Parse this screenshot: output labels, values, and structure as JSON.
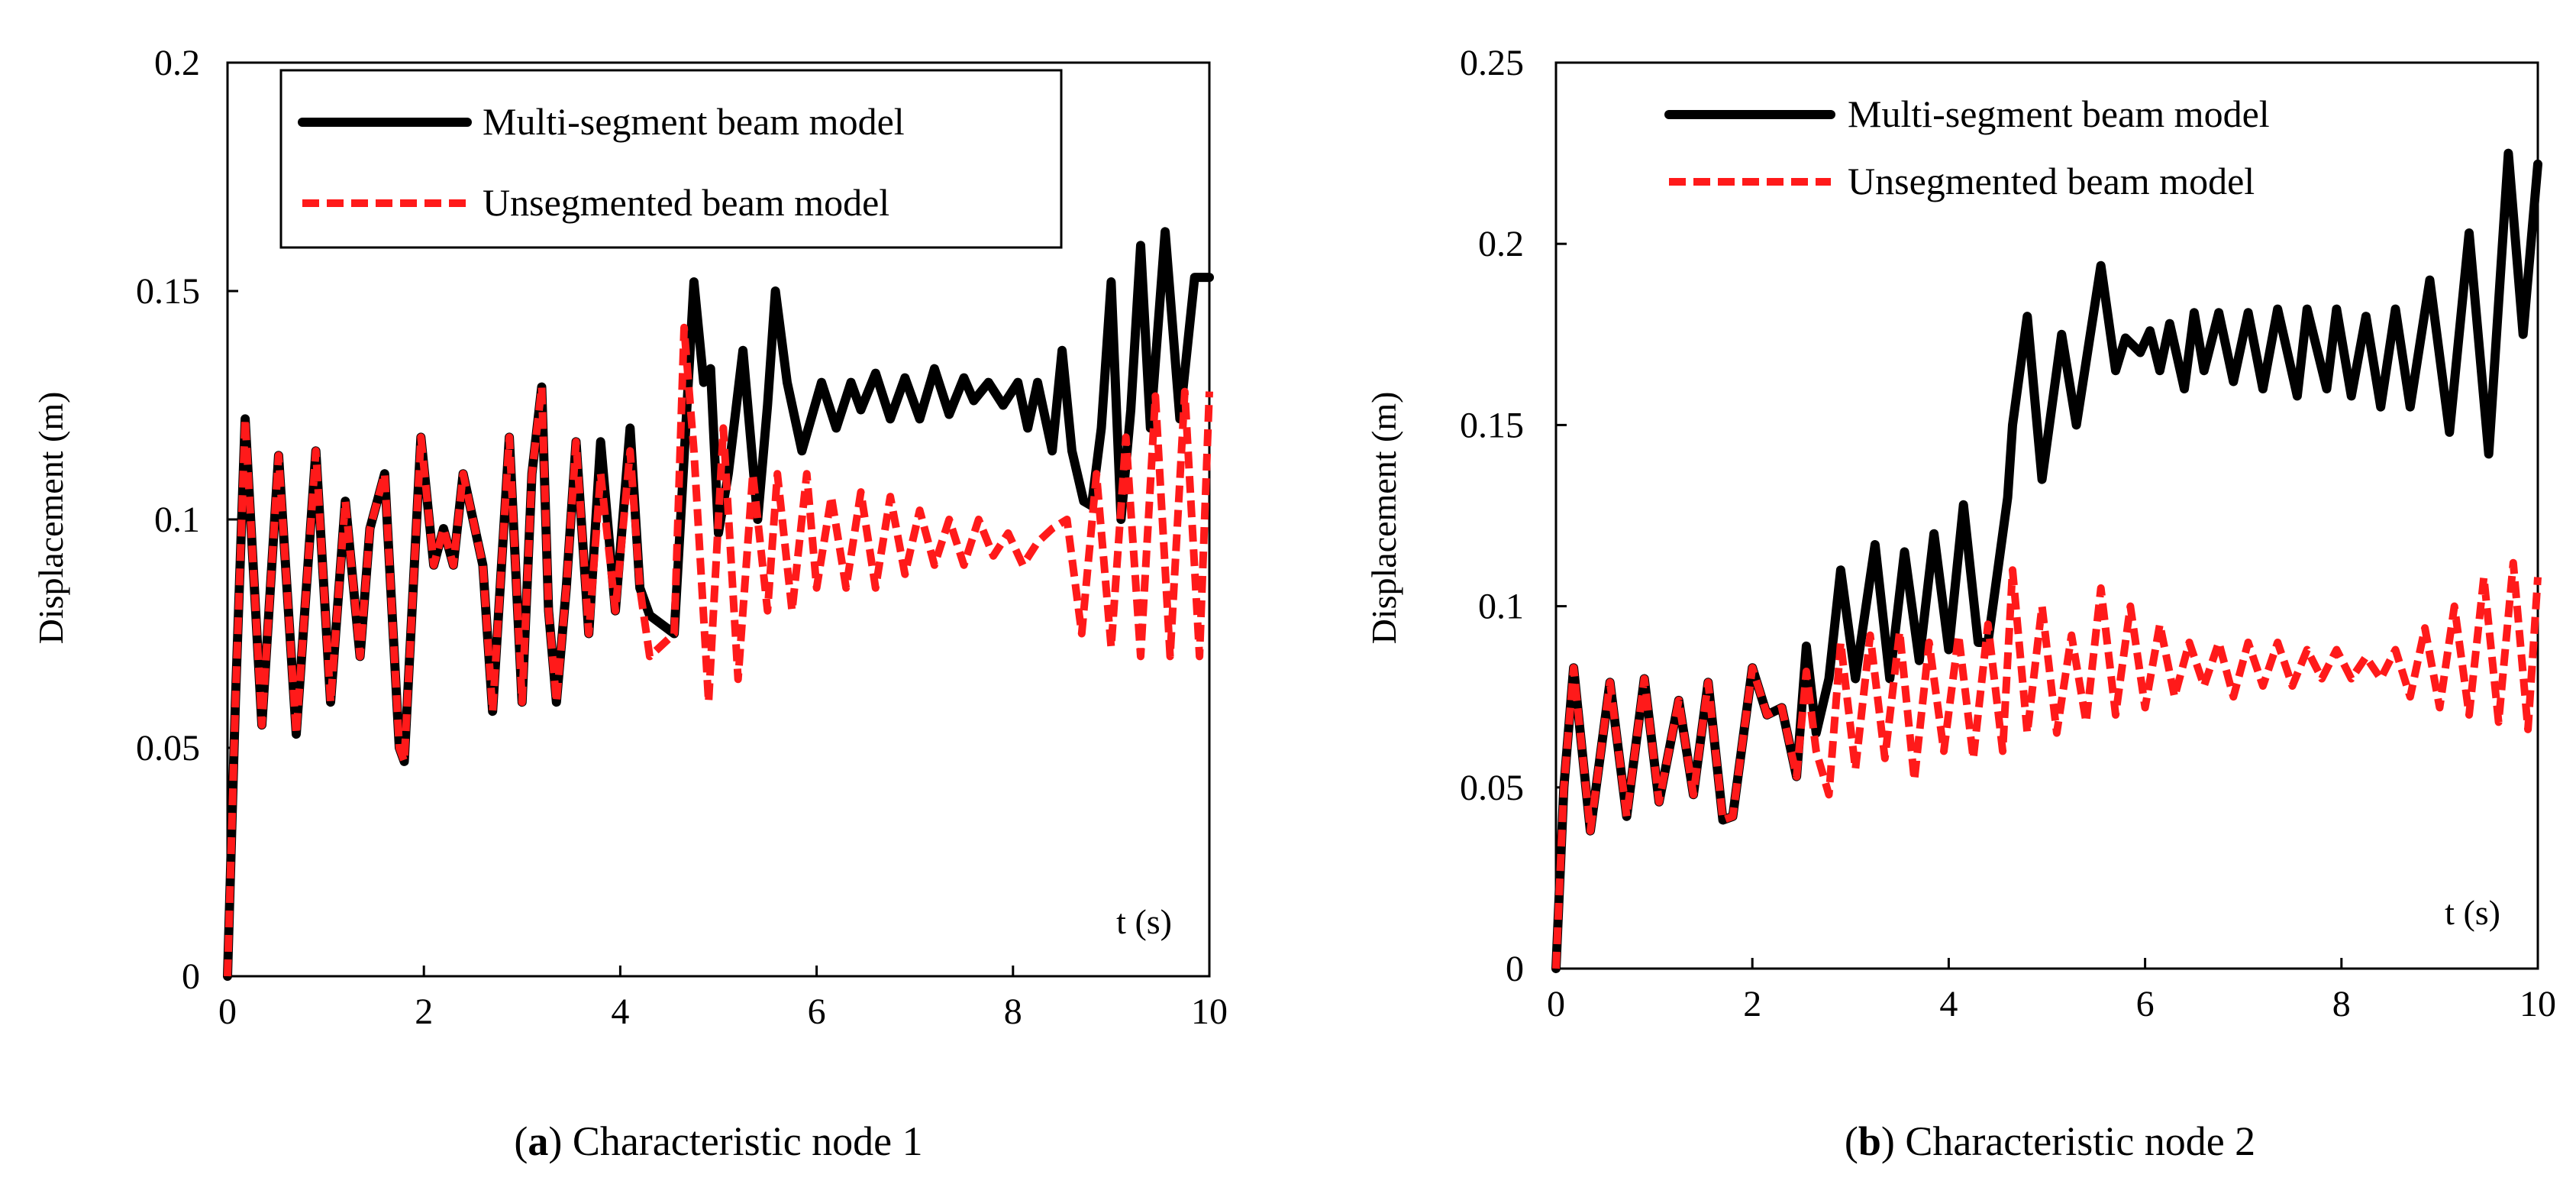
{
  "colors": {
    "multi": "#000000",
    "unseg": "#ff1a1a",
    "frame": "#000000",
    "background": "#ffffff"
  },
  "chart_data": [
    {
      "type": "line",
      "panel": "a",
      "caption": {
        "letter": "a",
        "open": "(",
        "close": ")",
        "text": " Characteristic node 1"
      },
      "xlabel": "t (s)",
      "ylabel": "Displacement (m)",
      "xlim": [
        0,
        10
      ],
      "ylim": [
        0,
        0.2
      ],
      "xticks": [
        0,
        2,
        4,
        6,
        8,
        10
      ],
      "xtick_labels": [
        "0",
        "2",
        "4",
        "6",
        "8",
        "10"
      ],
      "yticks": [
        0,
        0.05,
        0.1,
        0.15,
        0.2
      ],
      "ytick_labels": [
        "0",
        "0.05",
        "0.1",
        "0.15",
        "0.2"
      ],
      "grid": false,
      "legend": {
        "placement": "top-left",
        "boxed": true
      },
      "series": [
        {
          "name": "Multi-segment beam model",
          "style": "solid",
          "x": [
            0,
            0.08,
            0.18,
            0.35,
            0.52,
            0.7,
            0.9,
            1.05,
            1.2,
            1.35,
            1.45,
            1.6,
            1.75,
            1.8,
            1.97,
            2.1,
            2.2,
            2.3,
            2.4,
            2.5,
            2.6,
            2.7,
            2.87,
            3.0,
            3.1,
            3.2,
            3.27,
            3.35,
            3.45,
            3.55,
            3.68,
            3.8,
            3.95,
            4.1,
            4.2,
            4.3,
            4.55,
            4.75,
            4.85,
            4.92,
            5.0,
            5.1,
            5.25,
            5.4,
            5.5,
            5.58,
            5.7,
            5.85,
            6.05,
            6.2,
            6.35,
            6.45,
            6.6,
            6.75,
            6.9,
            7.05,
            7.2,
            7.35,
            7.5,
            7.6,
            7.75,
            7.9,
            8.05,
            8.15,
            8.25,
            8.4,
            8.5,
            8.6,
            8.72,
            8.8,
            8.9,
            9.0,
            9.1,
            9.2,
            9.3,
            9.4,
            9.55,
            9.7,
            9.85,
            10.0
          ],
          "y": [
            0,
            0.06,
            0.122,
            0.055,
            0.114,
            0.053,
            0.115,
            0.06,
            0.104,
            0.07,
            0.098,
            0.11,
            0.05,
            0.047,
            0.118,
            0.09,
            0.098,
            0.09,
            0.11,
            0.1,
            0.09,
            0.058,
            0.118,
            0.06,
            0.11,
            0.129,
            0.08,
            0.06,
            0.085,
            0.117,
            0.075,
            0.117,
            0.08,
            0.12,
            0.085,
            0.079,
            0.075,
            0.152,
            0.13,
            0.133,
            0.097,
            0.11,
            0.137,
            0.1,
            0.125,
            0.15,
            0.13,
            0.115,
            0.13,
            0.12,
            0.13,
            0.124,
            0.132,
            0.122,
            0.131,
            0.122,
            0.133,
            0.123,
            0.131,
            0.126,
            0.13,
            0.125,
            0.13,
            0.12,
            0.13,
            0.115,
            0.137,
            0.115,
            0.104,
            0.103,
            0.12,
            0.152,
            0.1,
            0.124,
            0.16,
            0.12,
            0.163,
            0.122,
            0.153,
            0.153
          ]
        },
        {
          "name": "Unsegmented beam model",
          "style": "dashed",
          "x": [
            0,
            0.08,
            0.18,
            0.35,
            0.52,
            0.7,
            0.9,
            1.05,
            1.2,
            1.35,
            1.45,
            1.6,
            1.75,
            1.8,
            1.97,
            2.1,
            2.2,
            2.3,
            2.4,
            2.5,
            2.6,
            2.7,
            2.87,
            3.0,
            3.1,
            3.2,
            3.27,
            3.35,
            3.45,
            3.55,
            3.68,
            3.8,
            3.95,
            4.1,
            4.2,
            4.3,
            4.55,
            4.65,
            4.75,
            4.9,
            5.05,
            5.2,
            5.35,
            5.5,
            5.6,
            5.75,
            5.9,
            6.0,
            6.15,
            6.3,
            6.45,
            6.6,
            6.75,
            6.9,
            7.05,
            7.2,
            7.35,
            7.5,
            7.65,
            7.8,
            7.95,
            8.1,
            8.25,
            8.4,
            8.55,
            8.7,
            8.85,
            9.0,
            9.15,
            9.3,
            9.45,
            9.6,
            9.75,
            9.9,
            10.0
          ],
          "y": [
            0,
            0.06,
            0.122,
            0.055,
            0.114,
            0.053,
            0.115,
            0.06,
            0.104,
            0.07,
            0.098,
            0.11,
            0.05,
            0.047,
            0.118,
            0.09,
            0.098,
            0.09,
            0.11,
            0.1,
            0.09,
            0.058,
            0.118,
            0.06,
            0.11,
            0.129,
            0.08,
            0.06,
            0.085,
            0.117,
            0.075,
            0.11,
            0.08,
            0.115,
            0.085,
            0.07,
            0.075,
            0.142,
            0.115,
            0.06,
            0.12,
            0.065,
            0.11,
            0.08,
            0.11,
            0.08,
            0.11,
            0.085,
            0.105,
            0.085,
            0.106,
            0.085,
            0.105,
            0.088,
            0.102,
            0.09,
            0.1,
            0.09,
            0.1,
            0.092,
            0.097,
            0.09,
            0.095,
            0.098,
            0.1,
            0.075,
            0.11,
            0.072,
            0.118,
            0.07,
            0.127,
            0.07,
            0.128,
            0.07,
            0.128
          ]
        }
      ]
    },
    {
      "type": "line",
      "panel": "b",
      "caption": {
        "letter": "b",
        "open": "(",
        "close": ")",
        "text": " Characteristic node 2"
      },
      "xlabel": "t (s)",
      "ylabel": "Displacement (m)",
      "xlim": [
        0,
        10
      ],
      "ylim": [
        0,
        0.25
      ],
      "xticks": [
        0,
        2,
        4,
        6,
        8,
        10
      ],
      "xtick_labels": [
        "0",
        "2",
        "4",
        "6",
        "8",
        "10"
      ],
      "yticks": [
        0,
        0.05,
        0.1,
        0.15,
        0.2,
        0.25
      ],
      "ytick_labels": [
        "0",
        "0.05",
        "0.1",
        "0.15",
        "0.2",
        "0.25"
      ],
      "grid": false,
      "legend": {
        "placement": "top-left",
        "boxed": false
      },
      "series": [
        {
          "name": "Multi-segment beam model",
          "style": "solid",
          "x": [
            0,
            0.08,
            0.18,
            0.35,
            0.55,
            0.72,
            0.9,
            1.05,
            1.25,
            1.4,
            1.55,
            1.7,
            1.8,
            2.0,
            2.15,
            2.3,
            2.45,
            2.55,
            2.65,
            2.78,
            2.9,
            3.05,
            3.25,
            3.4,
            3.55,
            3.7,
            3.85,
            4.0,
            4.15,
            4.3,
            4.4,
            4.6,
            4.65,
            4.8,
            4.95,
            5.15,
            5.3,
            5.55,
            5.7,
            5.8,
            5.95,
            6.05,
            6.15,
            6.25,
            6.4,
            6.5,
            6.6,
            6.75,
            6.9,
            7.05,
            7.2,
            7.35,
            7.55,
            7.65,
            7.85,
            7.95,
            8.1,
            8.25,
            8.4,
            8.55,
            8.7,
            8.9,
            9.1,
            9.3,
            9.5,
            9.7,
            9.85,
            10.0
          ],
          "y": [
            0,
            0.05,
            0.083,
            0.038,
            0.079,
            0.042,
            0.08,
            0.046,
            0.074,
            0.048,
            0.079,
            0.041,
            0.042,
            0.083,
            0.07,
            0.072,
            0.053,
            0.089,
            0.065,
            0.08,
            0.11,
            0.08,
            0.117,
            0.08,
            0.115,
            0.085,
            0.12,
            0.088,
            0.128,
            0.09,
            0.09,
            0.13,
            0.15,
            0.18,
            0.135,
            0.175,
            0.15,
            0.194,
            0.165,
            0.174,
            0.17,
            0.176,
            0.165,
            0.178,
            0.16,
            0.181,
            0.165,
            0.181,
            0.162,
            0.181,
            0.16,
            0.182,
            0.158,
            0.182,
            0.16,
            0.182,
            0.158,
            0.18,
            0.155,
            0.182,
            0.155,
            0.19,
            0.148,
            0.203,
            0.142,
            0.225,
            0.175,
            0.222
          ]
        },
        {
          "name": "Unsegmented beam model",
          "style": "dashed",
          "x": [
            0,
            0.08,
            0.18,
            0.35,
            0.55,
            0.72,
            0.9,
            1.05,
            1.25,
            1.4,
            1.55,
            1.7,
            1.8,
            2.0,
            2.15,
            2.3,
            2.45,
            2.55,
            2.65,
            2.78,
            2.9,
            3.05,
            3.2,
            3.35,
            3.5,
            3.65,
            3.8,
            3.95,
            4.1,
            4.25,
            4.4,
            4.55,
            4.65,
            4.8,
            4.95,
            5.1,
            5.25,
            5.4,
            5.55,
            5.7,
            5.85,
            6.0,
            6.15,
            6.3,
            6.45,
            6.6,
            6.75,
            6.9,
            7.05,
            7.2,
            7.35,
            7.5,
            7.65,
            7.8,
            7.95,
            8.1,
            8.25,
            8.4,
            8.55,
            8.7,
            8.85,
            9.0,
            9.15,
            9.3,
            9.45,
            9.6,
            9.75,
            9.9,
            10.0
          ],
          "y": [
            0,
            0.05,
            0.083,
            0.038,
            0.079,
            0.042,
            0.08,
            0.046,
            0.074,
            0.048,
            0.079,
            0.041,
            0.042,
            0.083,
            0.07,
            0.072,
            0.053,
            0.082,
            0.06,
            0.048,
            0.09,
            0.055,
            0.092,
            0.058,
            0.093,
            0.052,
            0.09,
            0.06,
            0.092,
            0.058,
            0.095,
            0.06,
            0.11,
            0.065,
            0.1,
            0.065,
            0.092,
            0.068,
            0.105,
            0.07,
            0.1,
            0.072,
            0.095,
            0.075,
            0.09,
            0.078,
            0.09,
            0.075,
            0.09,
            0.078,
            0.09,
            0.078,
            0.088,
            0.08,
            0.088,
            0.08,
            0.086,
            0.08,
            0.088,
            0.075,
            0.094,
            0.072,
            0.1,
            0.07,
            0.108,
            0.068,
            0.112,
            0.066,
            0.108
          ]
        }
      ]
    }
  ]
}
